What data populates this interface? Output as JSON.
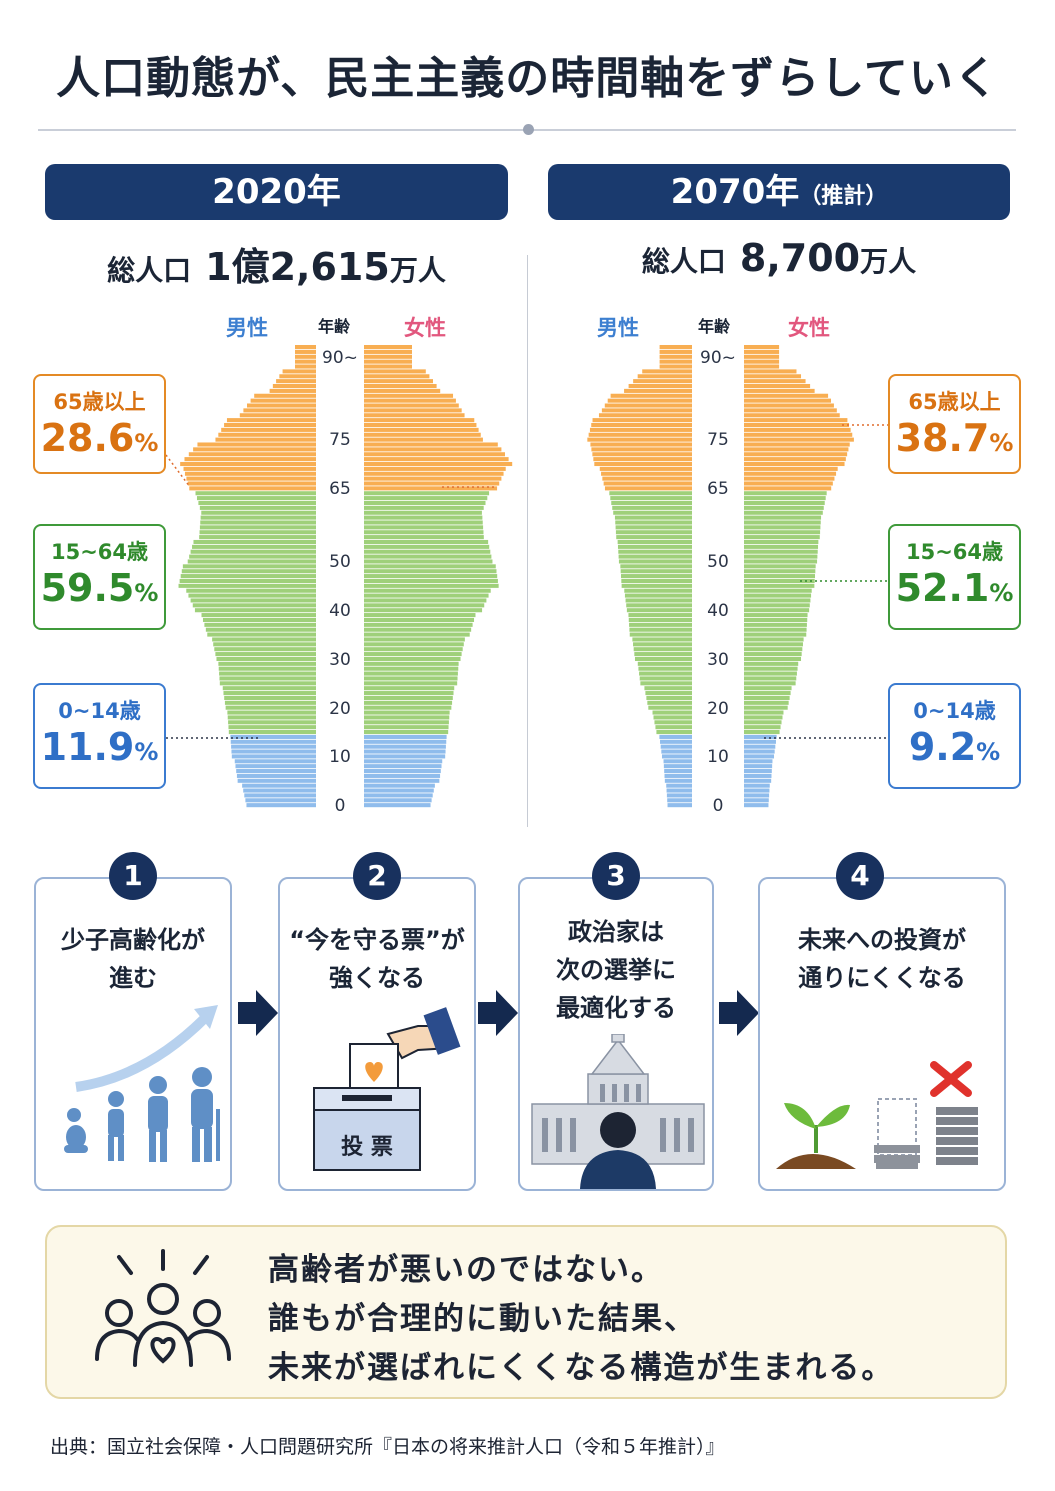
{
  "title": "人口動態が、民主主義の時間軸をずらしていく",
  "panels": [
    {
      "year": "2020年",
      "year_suffix": "",
      "total_label": "総人口",
      "total_value": "1億2,615",
      "total_unit": "万人",
      "male_label": "男性",
      "female_label": "女性",
      "age_label": "年齢",
      "groups": [
        {
          "label": "65歳以上",
          "value": "28.6",
          "unit": "%"
        },
        {
          "label": "15~64歳",
          "value": "59.5",
          "unit": "%"
        },
        {
          "label": "0~14歳",
          "value": "11.9",
          "unit": "%"
        }
      ]
    },
    {
      "year": "2070年",
      "year_suffix": "（推計）",
      "total_label": "総人口",
      "total_value": "8,700",
      "total_unit": "万人",
      "male_label": "男性",
      "female_label": "女性",
      "age_label": "年齢",
      "groups": [
        {
          "label": "65歳以上",
          "value": "38.7",
          "unit": "%"
        },
        {
          "label": "15~64歳",
          "value": "52.1",
          "unit": "%"
        },
        {
          "label": "0~14歳",
          "value": "9.2",
          "unit": "%"
        }
      ]
    }
  ],
  "age_ticks": [
    "90~",
    "75",
    "65",
    "50",
    "40",
    "30",
    "20",
    "10",
    "0"
  ],
  "chart_data": [
    {
      "type": "bar",
      "orientation": "population-pyramid",
      "panel": "2020年",
      "age_bands": [
        0,
        5,
        10,
        15,
        20,
        25,
        30,
        35,
        40,
        45,
        50,
        55,
        60,
        65,
        70,
        75,
        80,
        85,
        90
      ],
      "series": [
        {
          "name": "男性",
          "values": [
            2.3,
            2.6,
            2.8,
            2.9,
            3.0,
            3.2,
            3.3,
            3.6,
            4.0,
            4.6,
            4.3,
            3.9,
            3.8,
            4.2,
            4.6,
            3.4,
            2.6,
            1.6,
            0.7
          ]
        },
        {
          "name": "女性",
          "values": [
            2.2,
            2.5,
            2.7,
            2.8,
            2.9,
            3.1,
            3.2,
            3.5,
            3.9,
            4.5,
            4.3,
            4.0,
            3.9,
            4.4,
            5.0,
            4.0,
            3.4,
            2.6,
            1.6
          ]
        }
      ],
      "colors": {
        "0-14": "#8fbcec",
        "15-64": "#9fd07a",
        "65+": "#f8ae52"
      },
      "unit": "relative"
    },
    {
      "type": "bar",
      "orientation": "population-pyramid",
      "panel": "2070年（推計）",
      "age_bands": [
        0,
        5,
        10,
        15,
        20,
        25,
        30,
        35,
        40,
        45,
        50,
        55,
        60,
        65,
        70,
        75,
        80,
        85,
        90
      ],
      "series": [
        {
          "name": "男性",
          "values": [
            0.9,
            1.0,
            1.1,
            1.3,
            1.6,
            1.9,
            2.1,
            2.3,
            2.4,
            2.6,
            2.7,
            2.8,
            2.9,
            3.2,
            3.6,
            3.9,
            3.5,
            2.6,
            1.2
          ]
        },
        {
          "name": "女性",
          "values": [
            0.9,
            1.0,
            1.1,
            1.3,
            1.6,
            1.9,
            2.1,
            2.3,
            2.4,
            2.6,
            2.7,
            2.8,
            2.9,
            3.2,
            3.7,
            4.1,
            3.6,
            2.7,
            1.3
          ]
        }
      ],
      "colors": {
        "0-14": "#8fbcec",
        "15-64": "#9fd07a",
        "65+": "#f8ae52"
      },
      "unit": "relative"
    }
  ],
  "steps": [
    {
      "num": "1",
      "lines": [
        "少子高齢化が",
        "進む"
      ],
      "icon": "aging-people-icon"
    },
    {
      "num": "2",
      "lines": [
        "“今を守る票”が",
        "強くなる"
      ],
      "icon": "ballot-box-icon",
      "ballot_label": "投 票"
    },
    {
      "num": "3",
      "lines": [
        "政治家は",
        "次の選挙に",
        "最適化する"
      ],
      "icon": "parliament-icon"
    },
    {
      "num": "4",
      "lines": [
        "未来への投資が",
        "通りにくくなる"
      ],
      "icon": "sprout-coins-icon"
    }
  ],
  "message": [
    "高齢者が悪いのではない。",
    "誰もが合理的に動いた結果、",
    "未来が選ばれにくくなる構造が生まれる。"
  ],
  "source": "出典：国立社会保障・人口問題研究所『日本の将来推計人口（令和５年推計）』",
  "colors": {
    "navy": "#1a3a6e",
    "senior": "#f8ae52",
    "working": "#9fd07a",
    "youth": "#8fbcec"
  }
}
